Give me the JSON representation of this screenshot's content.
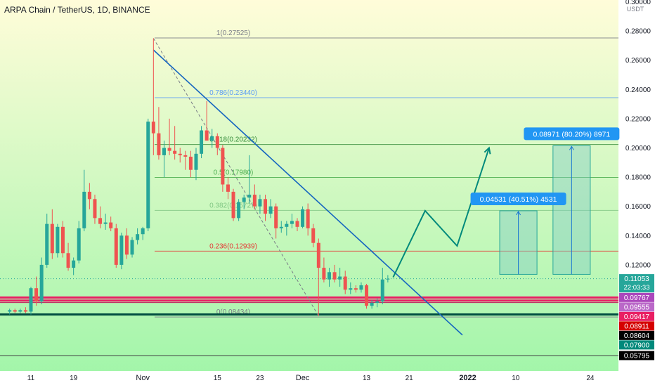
{
  "header": {
    "title": "ARPA Chain / TetherUS, 1D, BINANCE"
  },
  "axis": {
    "currency": "USDT"
  },
  "colors": {
    "bg_top": "#fffcd9",
    "bg_bottom": "#9ff5a8",
    "up": "#26a69a",
    "down": "#ef5350",
    "trend": "#1565c0",
    "projection": "#00897b"
  },
  "chart_data": {
    "type": "candlestick",
    "title": "ARPA Chain / TetherUS, 1D, BINANCE",
    "y_unit": "USDT",
    "ylim": [
      0.05,
      0.3
    ],
    "price_ticks": [
      {
        "value": 0.3,
        "label": "0.30000"
      },
      {
        "value": 0.28,
        "label": "0.28000"
      },
      {
        "value": 0.26,
        "label": "0.26000"
      },
      {
        "value": 0.24,
        "label": "0.24000"
      },
      {
        "value": 0.22,
        "label": "0.22000"
      },
      {
        "value": 0.2,
        "label": "0.20000"
      },
      {
        "value": 0.18,
        "label": "0.18000"
      },
      {
        "value": 0.16,
        "label": "0.16000"
      },
      {
        "value": 0.14,
        "label": "0.14000"
      },
      {
        "value": 0.12,
        "label": "0.12000"
      }
    ],
    "date_ticks": [
      {
        "date": "2021-10-11",
        "label": "11"
      },
      {
        "date": "2021-10-19",
        "label": "19"
      },
      {
        "date": "2021-11-01",
        "label": "Nov"
      },
      {
        "date": "2021-11-15",
        "label": "15"
      },
      {
        "date": "2021-11-23",
        "label": "23"
      },
      {
        "date": "2021-12-01",
        "label": "Dec"
      },
      {
        "date": "2021-12-13",
        "label": "13"
      },
      {
        "date": "2021-12-21",
        "label": "21"
      },
      {
        "date": "2022-01-01",
        "label": "2022"
      },
      {
        "date": "2022-01-10",
        "label": "10"
      },
      {
        "date": "2022-01-24",
        "label": "24"
      }
    ],
    "fib_levels": [
      {
        "ratio": "1",
        "value": 0.27525,
        "label": "1(0.27525)",
        "color": "#787b86"
      },
      {
        "ratio": "0.786",
        "value": 0.2344,
        "label": "0.786(0.23440)",
        "color": "#5b9cf6"
      },
      {
        "ratio": "0.618",
        "value": 0.20232,
        "label": "0.618(0.20232)",
        "color": "#388e3c"
      },
      {
        "ratio": "0.5",
        "value": 0.1798,
        "label": "0.5(0.17980)",
        "color": "#4caf50"
      },
      {
        "ratio": "0.382",
        "value": 0.15727,
        "label": "0.382(0.15727)",
        "color": "#81c784"
      },
      {
        "ratio": "0.236",
        "value": 0.12939,
        "label": "0.236(0.12939)",
        "color": "#e53935"
      },
      {
        "ratio": "0",
        "value": 0.08434,
        "label": "0(0.08434)",
        "color": "#787b86"
      }
    ],
    "horizontal_levels": [
      {
        "value": 0.09767,
        "color": "#e91e63",
        "width": 3
      },
      {
        "value": 0.09555,
        "color": "#e91e63",
        "width": 3
      },
      {
        "value": 0.09417,
        "color": "#c2185b",
        "width": 1
      },
      {
        "value": 0.08604,
        "color": "#004d40",
        "width": 3
      },
      {
        "value": 0.05795,
        "color": "#424242",
        "width": 1
      }
    ],
    "price_labels": [
      {
        "value": 0.11053,
        "text": "0.11053",
        "sub": "22:03:33",
        "bg": "#26a69a",
        "fg": "#ffffff"
      },
      {
        "value": 0.09767,
        "text": "0.09767",
        "bg": "#ab47bc",
        "fg": "#ffffff"
      },
      {
        "value": 0.09555,
        "text": "0.09555",
        "bg": "#ba68c8",
        "fg": "#ffffff"
      },
      {
        "value": 0.09417,
        "text": "0.09417",
        "bg": "#e91e63",
        "fg": "#ffffff"
      },
      {
        "value": 0.08911,
        "text": "0.08911",
        "bg": "#d50000",
        "fg": "#ffffff"
      },
      {
        "value": 0.08604,
        "text": "0.08604",
        "bg": "#000000",
        "fg": "#ffffff"
      },
      {
        "value": 0.079,
        "text": "0.07900",
        "bg": "#00897b",
        "fg": "#ffffff"
      },
      {
        "value": 0.05795,
        "text": "0.05795",
        "bg": "#000000",
        "fg": "#ffffff"
      }
    ],
    "candles": [
      [
        "2021-10-07",
        0.088,
        0.09,
        0.086,
        0.089
      ],
      [
        "2021-10-08",
        0.089,
        0.09,
        0.087,
        0.088
      ],
      [
        "2021-10-09",
        0.088,
        0.09,
        0.087,
        0.089
      ],
      [
        "2021-10-10",
        0.089,
        0.091,
        0.087,
        0.088
      ],
      [
        "2021-10-11",
        0.088,
        0.105,
        0.086,
        0.104
      ],
      [
        "2021-10-12",
        0.104,
        0.112,
        0.092,
        0.095
      ],
      [
        "2021-10-13",
        0.095,
        0.125,
        0.093,
        0.12
      ],
      [
        "2021-10-14",
        0.12,
        0.155,
        0.118,
        0.148
      ],
      [
        "2021-10-15",
        0.148,
        0.158,
        0.124,
        0.128
      ],
      [
        "2021-10-16",
        0.128,
        0.148,
        0.125,
        0.146
      ],
      [
        "2021-10-17",
        0.146,
        0.15,
        0.125,
        0.128
      ],
      [
        "2021-10-18",
        0.128,
        0.135,
        0.116,
        0.118
      ],
      [
        "2021-10-19",
        0.118,
        0.125,
        0.113,
        0.123
      ],
      [
        "2021-10-20",
        0.123,
        0.15,
        0.121,
        0.145
      ],
      [
        "2021-10-21",
        0.145,
        0.185,
        0.143,
        0.17
      ],
      [
        "2021-10-22",
        0.17,
        0.176,
        0.158,
        0.165
      ],
      [
        "2021-10-23",
        0.165,
        0.168,
        0.148,
        0.152
      ],
      [
        "2021-10-24",
        0.152,
        0.16,
        0.145,
        0.148
      ],
      [
        "2021-10-25",
        0.148,
        0.155,
        0.144,
        0.149
      ],
      [
        "2021-10-26",
        0.149,
        0.153,
        0.143,
        0.145
      ],
      [
        "2021-10-27",
        0.145,
        0.148,
        0.118,
        0.12
      ],
      [
        "2021-10-28",
        0.12,
        0.142,
        0.117,
        0.14
      ],
      [
        "2021-10-29",
        0.14,
        0.145,
        0.124,
        0.127
      ],
      [
        "2021-10-30",
        0.127,
        0.139,
        0.125,
        0.137
      ],
      [
        "2021-10-31",
        0.137,
        0.145,
        0.134,
        0.141
      ],
      [
        "2021-11-01",
        0.141,
        0.146,
        0.137,
        0.145
      ],
      [
        "2021-11-02",
        0.145,
        0.22,
        0.143,
        0.218
      ],
      [
        "2021-11-03",
        0.218,
        0.275,
        0.195,
        0.21
      ],
      [
        "2021-11-04",
        0.21,
        0.228,
        0.192,
        0.195
      ],
      [
        "2021-11-05",
        0.195,
        0.205,
        0.18,
        0.2
      ],
      [
        "2021-11-06",
        0.2,
        0.22,
        0.195,
        0.198
      ],
      [
        "2021-11-07",
        0.198,
        0.215,
        0.192,
        0.196
      ],
      [
        "2021-11-08",
        0.196,
        0.2,
        0.19,
        0.195
      ],
      [
        "2021-11-09",
        0.195,
        0.198,
        0.185,
        0.194
      ],
      [
        "2021-11-10",
        0.194,
        0.198,
        0.18,
        0.185
      ],
      [
        "2021-11-11",
        0.185,
        0.2,
        0.178,
        0.196
      ],
      [
        "2021-11-12",
        0.196,
        0.215,
        0.193,
        0.212
      ],
      [
        "2021-11-13",
        0.212,
        0.232,
        0.205,
        0.205
      ],
      [
        "2021-11-14",
        0.205,
        0.213,
        0.2,
        0.208
      ],
      [
        "2021-11-15",
        0.208,
        0.21,
        0.195,
        0.2
      ],
      [
        "2021-11-16",
        0.2,
        0.202,
        0.17,
        0.175
      ],
      [
        "2021-11-17",
        0.175,
        0.18,
        0.165,
        0.17
      ],
      [
        "2021-11-18",
        0.17,
        0.172,
        0.15,
        0.152
      ],
      [
        "2021-11-19",
        0.152,
        0.165,
        0.15,
        0.163
      ],
      [
        "2021-11-20",
        0.163,
        0.168,
        0.158,
        0.166
      ],
      [
        "2021-11-21",
        0.166,
        0.195,
        0.162,
        0.168
      ],
      [
        "2021-11-22",
        0.168,
        0.175,
        0.158,
        0.16
      ],
      [
        "2021-11-23",
        0.16,
        0.168,
        0.155,
        0.165
      ],
      [
        "2021-11-24",
        0.165,
        0.168,
        0.15,
        0.155
      ],
      [
        "2021-11-25",
        0.155,
        0.165,
        0.152,
        0.16
      ],
      [
        "2021-11-26",
        0.16,
        0.162,
        0.138,
        0.145
      ],
      [
        "2021-11-27",
        0.145,
        0.15,
        0.142,
        0.146
      ],
      [
        "2021-11-28",
        0.146,
        0.15,
        0.14,
        0.148
      ],
      [
        "2021-11-29",
        0.148,
        0.155,
        0.145,
        0.15
      ],
      [
        "2021-11-30",
        0.15,
        0.152,
        0.143,
        0.146
      ],
      [
        "2021-12-01",
        0.146,
        0.16,
        0.145,
        0.158
      ],
      [
        "2021-12-02",
        0.158,
        0.162,
        0.14,
        0.145
      ],
      [
        "2021-12-03",
        0.145,
        0.148,
        0.132,
        0.135
      ],
      [
        "2021-12-04",
        0.135,
        0.138,
        0.085,
        0.118
      ],
      [
        "2021-12-05",
        0.118,
        0.125,
        0.108,
        0.11
      ],
      [
        "2021-12-06",
        0.11,
        0.118,
        0.105,
        0.115
      ],
      [
        "2021-12-07",
        0.115,
        0.12,
        0.108,
        0.11
      ],
      [
        "2021-12-08",
        0.11,
        0.118,
        0.105,
        0.112
      ],
      [
        "2021-12-09",
        0.112,
        0.116,
        0.1,
        0.103
      ],
      [
        "2021-12-10",
        0.103,
        0.108,
        0.1,
        0.104
      ],
      [
        "2021-12-11",
        0.104,
        0.106,
        0.101,
        0.103
      ],
      [
        "2021-12-12",
        0.103,
        0.108,
        0.101,
        0.106
      ],
      [
        "2021-12-13",
        0.106,
        0.107,
        0.09,
        0.092
      ],
      [
        "2021-12-14",
        0.092,
        0.096,
        0.09,
        0.094
      ],
      [
        "2021-12-15",
        0.094,
        0.097,
        0.091,
        0.095
      ],
      [
        "2021-12-16",
        0.095,
        0.118,
        0.093,
        0.11
      ],
      [
        "2021-12-17",
        0.11,
        0.113,
        0.108,
        0.1105
      ]
    ],
    "trendline": [
      [
        "2021-11-03",
        0.267
      ],
      [
        "2021-12-31",
        0.072
      ]
    ],
    "fib_diagonal": [
      [
        "2021-11-03",
        0.275
      ],
      [
        "2021-12-04",
        0.085
      ]
    ],
    "projection_path": [
      [
        "2021-12-18",
        0.1115
      ],
      [
        "2021-12-24",
        0.157
      ],
      [
        "2021-12-30",
        0.133
      ],
      [
        "2022-01-05",
        0.2
      ]
    ],
    "measure_boxes": [
      {
        "date_start": "2022-01-07",
        "date_end": "2022-01-14",
        "low": 0.1135,
        "high": 0.157,
        "label": "0.04531 (40.51%) 4531"
      },
      {
        "date_start": "2022-01-17",
        "date_end": "2022-01-24",
        "low": 0.1135,
        "high": 0.2015,
        "label": "0.08971 (80.20%) 8971"
      }
    ],
    "last_price": 0.11053,
    "grid": false,
    "legend": "none"
  }
}
